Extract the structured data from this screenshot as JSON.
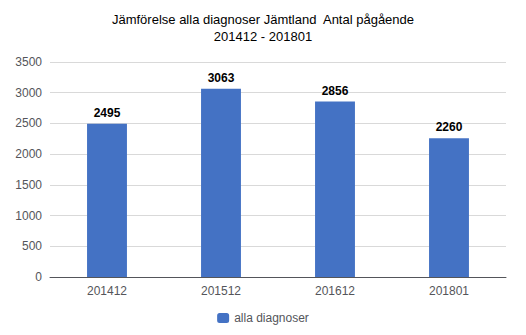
{
  "chart_data": {
    "type": "bar",
    "title": "Jämförelse alla diagnoser Jämtland  Antal pågående\n201412 - 201801",
    "categories": [
      "201412",
      "201512",
      "201612",
      "201801"
    ],
    "series": [
      {
        "name": "alla diagnoser",
        "color": "#4472C4",
        "values": [
          2495,
          3063,
          2856,
          2260
        ]
      }
    ],
    "ylim": [
      0,
      3500
    ],
    "yticks": [
      0,
      500,
      1000,
      1500,
      2000,
      2500,
      3000,
      3500
    ],
    "grid": true,
    "legend": "bottom",
    "data_labels": true
  }
}
